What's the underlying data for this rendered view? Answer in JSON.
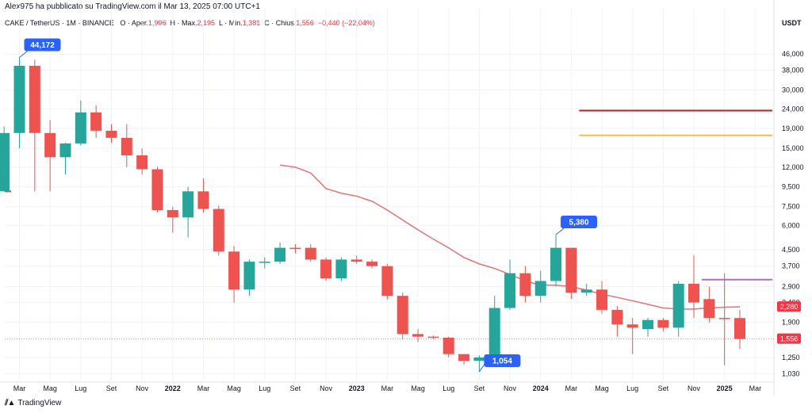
{
  "header": {
    "published_by": "Alex975 ha pubblicato su TradingView.com il Mar 13, 2025 07:00 UTC+1"
  },
  "legend": {
    "symbol": "CAKE / TetherUS · 1M · BINANCE",
    "open_label": "O · Aper.",
    "open_value": "1,996",
    "high_label": "H · Max.",
    "high_value": "2,195",
    "low_label": "L · Min.",
    "low_value": "1,381",
    "close_label": "C · Chius.",
    "close_value": "1,556",
    "change_value": "−0,440 (−22,04%)"
  },
  "footer": {
    "brand": "TradingView"
  },
  "colors": {
    "up": "#26a69a",
    "down": "#ef5350",
    "ma": "#e57373",
    "dark_red": "#b22222",
    "orange": "#ffb74d",
    "purple": "#ba68c8",
    "label_blue": "#2962ff",
    "price_red": "#f23645"
  },
  "chart_data": {
    "type": "candlestick",
    "y_scale": "log",
    "y_unit": "USDT",
    "ylim": [
      0.95,
      60
    ],
    "y_ticks": [
      {
        "value": 46,
        "label": "46,000"
      },
      {
        "value": 38,
        "label": "38,000"
      },
      {
        "value": 30,
        "label": "30,000"
      },
      {
        "value": 24,
        "label": "24,000"
      },
      {
        "value": 19,
        "label": "19,000"
      },
      {
        "value": 15,
        "label": "15,000"
      },
      {
        "value": 12,
        "label": "12,000"
      },
      {
        "value": 9.5,
        "label": "9,500"
      },
      {
        "value": 7.5,
        "label": "7,500"
      },
      {
        "value": 6,
        "label": "6,000"
      },
      {
        "value": 4.5,
        "label": "4,500"
      },
      {
        "value": 3.7,
        "label": "3,700"
      },
      {
        "value": 2.9,
        "label": "2,900"
      },
      {
        "value": 2.4,
        "label": "2,400"
      },
      {
        "value": 1.9,
        "label": "1,900"
      },
      {
        "value": 1.25,
        "label": "1,250"
      },
      {
        "value": 1.03,
        "label": "1,030"
      }
    ],
    "x_ticks": [
      {
        "month": "2021-03",
        "label": "Mar",
        "bold": false
      },
      {
        "month": "2021-05",
        "label": "Mag",
        "bold": false
      },
      {
        "month": "2021-07",
        "label": "Lug",
        "bold": false
      },
      {
        "month": "2021-09",
        "label": "Set",
        "bold": false
      },
      {
        "month": "2021-11",
        "label": "Nov",
        "bold": false
      },
      {
        "month": "2022-01",
        "label": "2022",
        "bold": true
      },
      {
        "month": "2022-03",
        "label": "Mar",
        "bold": false
      },
      {
        "month": "2022-05",
        "label": "Mag",
        "bold": false
      },
      {
        "month": "2022-07",
        "label": "Lug",
        "bold": false
      },
      {
        "month": "2022-09",
        "label": "Set",
        "bold": false
      },
      {
        "month": "2022-11",
        "label": "Nov",
        "bold": false
      },
      {
        "month": "2023-01",
        "label": "2023",
        "bold": true
      },
      {
        "month": "2023-03",
        "label": "Mar",
        "bold": false
      },
      {
        "month": "2023-05",
        "label": "Mag",
        "bold": false
      },
      {
        "month": "2023-07",
        "label": "Lug",
        "bold": false
      },
      {
        "month": "2023-09",
        "label": "Set",
        "bold": false
      },
      {
        "month": "2023-11",
        "label": "Nov",
        "bold": false
      },
      {
        "month": "2024-01",
        "label": "2024",
        "bold": true
      },
      {
        "month": "2024-03",
        "label": "Mar",
        "bold": false
      },
      {
        "month": "2024-05",
        "label": "Mag",
        "bold": false
      },
      {
        "month": "2024-07",
        "label": "Lug",
        "bold": false
      },
      {
        "month": "2024-09",
        "label": "Set",
        "bold": false
      },
      {
        "month": "2024-11",
        "label": "Nov",
        "bold": false
      },
      {
        "month": "2025-01",
        "label": "2025",
        "bold": true
      },
      {
        "month": "2025-03",
        "label": "Mar",
        "bold": false
      }
    ],
    "candles": [
      {
        "month": "2021-02",
        "o": 9.0,
        "h": 19.5,
        "l": 9.0,
        "c": 18.0
      },
      {
        "month": "2021-03",
        "o": 18.0,
        "h": 44.172,
        "l": 15.0,
        "c": 40.0
      },
      {
        "month": "2021-04",
        "o": 40.0,
        "h": 43.0,
        "l": 9.0,
        "c": 18.0
      },
      {
        "month": "2021-05",
        "o": 18.0,
        "h": 21.0,
        "l": 9.0,
        "c": 13.5
      },
      {
        "month": "2021-06",
        "o": 13.5,
        "h": 16.0,
        "l": 11.0,
        "c": 15.9
      },
      {
        "month": "2021-07",
        "o": 15.9,
        "h": 26.5,
        "l": 15.5,
        "c": 23.0
      },
      {
        "month": "2021-08",
        "o": 23.0,
        "h": 25.0,
        "l": 17.0,
        "c": 18.5
      },
      {
        "month": "2021-09",
        "o": 18.5,
        "h": 20.0,
        "l": 16.0,
        "c": 17.0
      },
      {
        "month": "2021-10",
        "o": 17.0,
        "h": 20.0,
        "l": 12.0,
        "c": 13.8
      },
      {
        "month": "2021-11",
        "o": 13.8,
        "h": 15.0,
        "l": 11.0,
        "c": 11.7
      },
      {
        "month": "2021-12",
        "o": 11.7,
        "h": 12.0,
        "l": 7.0,
        "c": 7.2
      },
      {
        "month": "2022-01",
        "o": 7.2,
        "h": 7.5,
        "l": 5.5,
        "c": 6.6
      },
      {
        "month": "2022-02",
        "o": 6.6,
        "h": 9.5,
        "l": 5.2,
        "c": 9.0
      },
      {
        "month": "2022-03",
        "o": 9.0,
        "h": 10.5,
        "l": 7.0,
        "c": 7.3
      },
      {
        "month": "2022-04",
        "o": 7.3,
        "h": 7.6,
        "l": 4.2,
        "c": 4.4
      },
      {
        "month": "2022-05",
        "o": 4.4,
        "h": 4.7,
        "l": 2.4,
        "c": 2.8
      },
      {
        "month": "2022-06",
        "o": 2.8,
        "h": 4.0,
        "l": 2.6,
        "c": 3.9
      },
      {
        "month": "2022-07",
        "o": 3.9,
        "h": 4.1,
        "l": 3.6,
        "c": 3.9
      },
      {
        "month": "2022-08",
        "o": 3.9,
        "h": 4.9,
        "l": 3.8,
        "c": 4.6
      },
      {
        "month": "2022-09",
        "o": 4.6,
        "h": 4.8,
        "l": 4.3,
        "c": 4.55
      },
      {
        "month": "2022-10",
        "o": 4.6,
        "h": 4.8,
        "l": 3.9,
        "c": 4.0
      },
      {
        "month": "2022-11",
        "o": 4.0,
        "h": 4.1,
        "l": 3.1,
        "c": 3.2
      },
      {
        "month": "2022-12",
        "o": 3.2,
        "h": 4.1,
        "l": 3.1,
        "c": 4.0
      },
      {
        "month": "2023-01",
        "o": 4.0,
        "h": 4.2,
        "l": 3.8,
        "c": 3.9
      },
      {
        "month": "2023-02",
        "o": 3.9,
        "h": 4.0,
        "l": 3.6,
        "c": 3.7
      },
      {
        "month": "2023-03",
        "o": 3.7,
        "h": 3.8,
        "l": 2.5,
        "c": 2.6
      },
      {
        "month": "2023-04",
        "o": 2.6,
        "h": 2.7,
        "l": 1.55,
        "c": 1.65
      },
      {
        "month": "2023-05",
        "o": 1.65,
        "h": 1.75,
        "l": 1.5,
        "c": 1.6
      },
      {
        "month": "2023-06",
        "o": 1.6,
        "h": 1.62,
        "l": 1.55,
        "c": 1.58
      },
      {
        "month": "2023-07",
        "o": 1.58,
        "h": 1.6,
        "l": 1.25,
        "c": 1.3
      },
      {
        "month": "2023-08",
        "o": 1.3,
        "h": 1.3,
        "l": 1.15,
        "c": 1.2
      },
      {
        "month": "2023-09",
        "o": 1.2,
        "h": 1.28,
        "l": 1.054,
        "c": 1.25
      },
      {
        "month": "2023-10",
        "o": 1.25,
        "h": 2.6,
        "l": 1.2,
        "c": 2.25
      },
      {
        "month": "2023-11",
        "o": 2.25,
        "h": 4.0,
        "l": 2.2,
        "c": 3.4
      },
      {
        "month": "2023-12",
        "o": 3.4,
        "h": 3.7,
        "l": 2.4,
        "c": 2.6
      },
      {
        "month": "2024-01",
        "o": 2.6,
        "h": 3.5,
        "l": 2.4,
        "c": 3.1
      },
      {
        "month": "2024-02",
        "o": 3.1,
        "h": 5.38,
        "l": 2.9,
        "c": 4.6
      },
      {
        "month": "2024-03",
        "o": 4.6,
        "h": 4.6,
        "l": 2.5,
        "c": 2.7
      },
      {
        "month": "2024-04",
        "o": 2.7,
        "h": 3.0,
        "l": 2.6,
        "c": 2.8
      },
      {
        "month": "2024-05",
        "o": 2.8,
        "h": 3.1,
        "l": 2.1,
        "c": 2.2
      },
      {
        "month": "2024-06",
        "o": 2.2,
        "h": 2.3,
        "l": 1.6,
        "c": 1.85
      },
      {
        "month": "2024-07",
        "o": 1.85,
        "h": 2.0,
        "l": 1.3,
        "c": 1.78
      },
      {
        "month": "2024-08",
        "o": 1.75,
        "h": 2.0,
        "l": 1.6,
        "c": 1.95
      },
      {
        "month": "2024-09",
        "o": 1.95,
        "h": 2.0,
        "l": 1.7,
        "c": 1.78
      },
      {
        "month": "2024-10",
        "o": 1.78,
        "h": 3.1,
        "l": 1.6,
        "c": 3.0
      },
      {
        "month": "2024-11",
        "o": 3.0,
        "h": 4.2,
        "l": 2.0,
        "c": 2.4
      },
      {
        "month": "2024-12",
        "o": 2.5,
        "h": 2.9,
        "l": 1.9,
        "c": 2.0
      },
      {
        "month": "2025-01",
        "o": 2.0,
        "h": 3.4,
        "l": 1.14,
        "c": 1.996
      },
      {
        "month": "2025-02",
        "o": 1.996,
        "h": 2.195,
        "l": 1.381,
        "c": 1.556
      }
    ],
    "moving_average": [
      {
        "month": "2022-08",
        "v": 12.3
      },
      {
        "month": "2022-09",
        "v": 12.0
      },
      {
        "month": "2022-10",
        "v": 11.2
      },
      {
        "month": "2022-11",
        "v": 9.3
      },
      {
        "month": "2022-12",
        "v": 8.8
      },
      {
        "month": "2023-01",
        "v": 8.5
      },
      {
        "month": "2023-02",
        "v": 8.0
      },
      {
        "month": "2023-03",
        "v": 7.2
      },
      {
        "month": "2023-04",
        "v": 6.4
      },
      {
        "month": "2023-05",
        "v": 5.7
      },
      {
        "month": "2023-06",
        "v": 5.1
      },
      {
        "month": "2023-07",
        "v": 4.6
      },
      {
        "month": "2023-08",
        "v": 4.1
      },
      {
        "month": "2023-09",
        "v": 3.8
      },
      {
        "month": "2023-10",
        "v": 3.6
      },
      {
        "month": "2023-11",
        "v": 3.35
      },
      {
        "month": "2023-12",
        "v": 3.1
      },
      {
        "month": "2024-01",
        "v": 2.95
      },
      {
        "month": "2024-02",
        "v": 2.95
      },
      {
        "month": "2024-03",
        "v": 2.9
      },
      {
        "month": "2024-04",
        "v": 2.78
      },
      {
        "month": "2024-05",
        "v": 2.65
      },
      {
        "month": "2024-06",
        "v": 2.55
      },
      {
        "month": "2024-07",
        "v": 2.45
      },
      {
        "month": "2024-08",
        "v": 2.35
      },
      {
        "month": "2024-09",
        "v": 2.25
      },
      {
        "month": "2024-10",
        "v": 2.22
      },
      {
        "month": "2024-11",
        "v": 2.22
      },
      {
        "month": "2024-12",
        "v": 2.25
      },
      {
        "month": "2025-01",
        "v": 2.27
      },
      {
        "month": "2025-02",
        "v": 2.28
      }
    ],
    "horizontal_lines": [
      {
        "level": 23.5,
        "from": "2024-03",
        "to": "2025-03",
        "color": "#b22222"
      },
      {
        "level": 17.5,
        "from": "2024-03",
        "to": "2025-03",
        "color": "#ffb74d"
      },
      {
        "level": 3.15,
        "from": "2024-11",
        "to": "2025-03",
        "color": "#ba68c8"
      }
    ],
    "price_callouts": [
      {
        "month": "2021-03",
        "value": 44.172,
        "label": "44,172",
        "side": "above"
      },
      {
        "month": "2024-02",
        "value": 5.38,
        "label": "5,380",
        "side": "above"
      },
      {
        "month": "2023-09",
        "value": 1.054,
        "label": "1,054",
        "side": "below"
      }
    ],
    "axis_markers": [
      {
        "value": 2.28,
        "label": "2,280",
        "color": "#f23645"
      },
      {
        "value": 1.556,
        "label": "1,556",
        "color": "#f23645"
      }
    ],
    "current_price": 1.556
  }
}
